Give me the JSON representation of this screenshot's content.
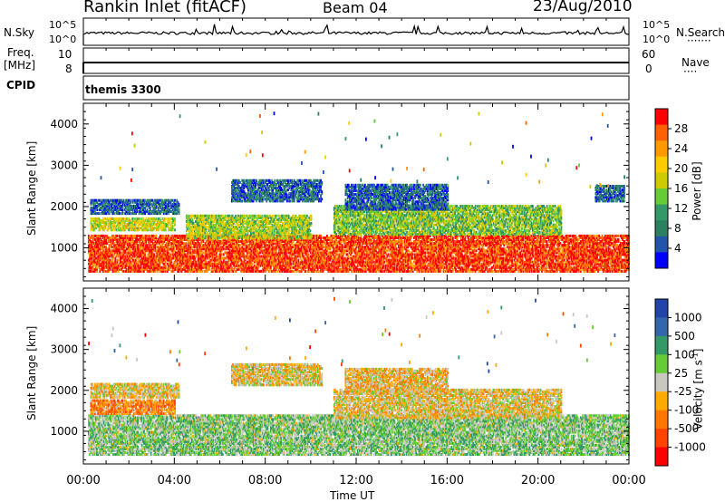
{
  "header": {
    "station": "Rankin Inlet (fitACF)",
    "beam": "Beam 04",
    "date": "23/Aug/2010"
  },
  "top_panels": {
    "nsky_label": "N.Sky",
    "nsky_ticks": [
      "10^5",
      "10^0"
    ],
    "nsearch_label": "N.Search",
    "nsearch_ticks": [
      "10^5",
      "10^0"
    ],
    "freq_label_top": "Freq.",
    "freq_label_bottom": "[MHz]",
    "freq_ticks": [
      "10",
      "8"
    ],
    "nave_label": "Nave",
    "nave_ticks": [
      "60",
      "0"
    ],
    "cpid_label": "CPID",
    "cpid_value": "themis 3300"
  },
  "chart_data": [
    {
      "type": "heatmap",
      "name": "power",
      "ylabel": "Slant Range [km]",
      "yticks": [
        1000,
        2000,
        3000,
        4000
      ],
      "ylim": [
        200,
        4500
      ],
      "xlim_hours": [
        0,
        24
      ],
      "colorbar_label": "Power [dB]",
      "colorbar_ticks": [
        "28",
        "24",
        "20",
        "16",
        "12",
        "8",
        "4"
      ],
      "colorbar_colors": [
        "#ff0000",
        "#ff6000",
        "#ff9900",
        "#ffcc00",
        "#cccc00",
        "#66cc33",
        "#339966",
        "#2b8060",
        "#2255aa",
        "#0000ff"
      ],
      "bands": [
        {
          "t0": 0.2,
          "t1": 24,
          "r0": 400,
          "r1": 1300,
          "level": 0.9
        },
        {
          "t0": 0.3,
          "t1": 4,
          "r0": 1400,
          "r1": 1700,
          "level": 0.55
        },
        {
          "t0": 0.3,
          "t1": 4.2,
          "r0": 1800,
          "r1": 2150,
          "level": 0.2
        },
        {
          "t0": 4.5,
          "t1": 10,
          "r0": 1200,
          "r1": 1750,
          "level": 0.5
        },
        {
          "t0": 6.5,
          "t1": 10.5,
          "r0": 2100,
          "r1": 2600,
          "level": 0.2
        },
        {
          "t0": 11,
          "t1": 21,
          "r0": 1300,
          "r1": 2000,
          "level": 0.45
        },
        {
          "t0": 11.5,
          "t1": 16,
          "r0": 1900,
          "r1": 2500,
          "level": 0.18
        },
        {
          "t0": 22.5,
          "t1": 23.8,
          "r0": 2100,
          "r1": 2500,
          "level": 0.2
        }
      ]
    },
    {
      "type": "heatmap",
      "name": "velocity",
      "ylabel": "Slant Range [km]",
      "yticks": [
        1000,
        2000,
        3000,
        4000
      ],
      "ylim": [
        200,
        4500
      ],
      "xlim_hours": [
        0,
        24
      ],
      "xticks": [
        "00:00",
        "04:00",
        "08:00",
        "12:00",
        "16:00",
        "20:00",
        "00:00"
      ],
      "xlabel": "Time UT",
      "colorbar_label": "Velocity [m s^-1]",
      "colorbar_ticks": [
        "1000",
        "500",
        "100",
        "25",
        "-25",
        "-100",
        "-500",
        "-1000"
      ],
      "colorbar_colors": [
        "#2244aa",
        "#3366aa",
        "#339966",
        "#66cc33",
        "#c8c8c0",
        "#ffaa00",
        "#ff7700",
        "#ff4400",
        "#ff0000"
      ],
      "bands": [
        {
          "t0": 0.2,
          "t1": 24,
          "r0": 400,
          "r1": 1350,
          "level": 0.6
        },
        {
          "t0": 0.3,
          "t1": 4,
          "r0": 1400,
          "r1": 1750,
          "level": 0.3
        },
        {
          "t0": 0.3,
          "t1": 4.2,
          "r0": 1800,
          "r1": 2150,
          "level": 0.45
        },
        {
          "t0": 6.5,
          "t1": 10.5,
          "r0": 2100,
          "r1": 2600,
          "level": 0.45
        },
        {
          "t0": 11,
          "t1": 21,
          "r0": 1300,
          "r1": 2000,
          "level": 0.45
        },
        {
          "t0": 11.5,
          "t1": 16,
          "r0": 1900,
          "r1": 2500,
          "level": 0.42
        }
      ]
    }
  ]
}
